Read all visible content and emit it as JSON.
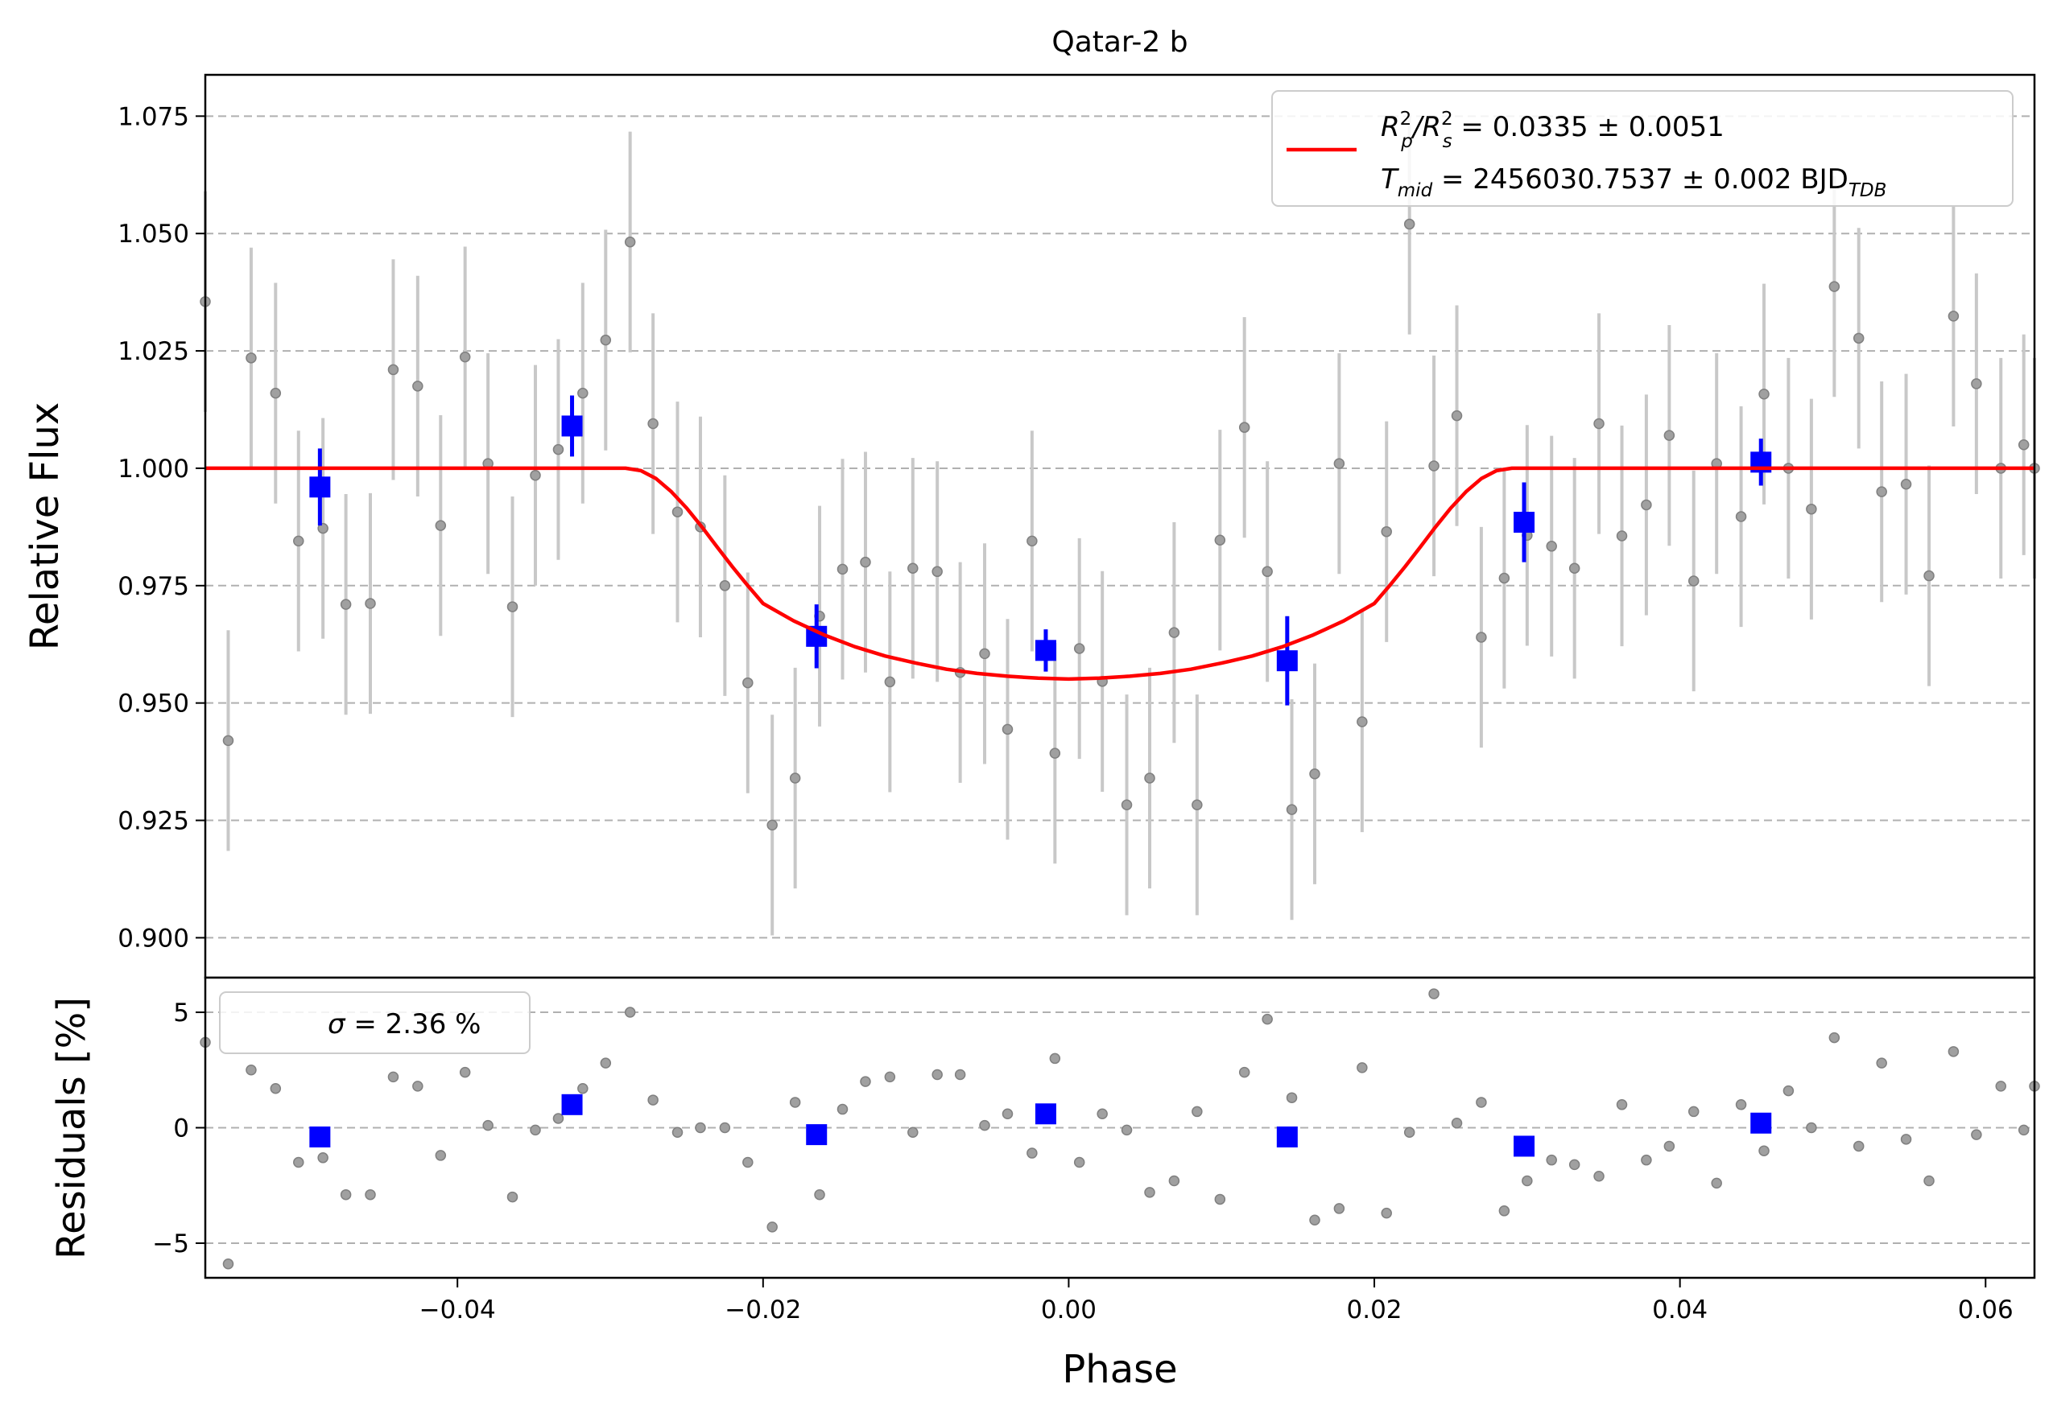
{
  "chart_data": [
    {
      "type": "scatter",
      "title": "Qatar-2 b",
      "xlabel": "",
      "ylabel": "Relative Flux",
      "xlim": [
        -0.0565,
        0.0632
      ],
      "ylim": [
        0.8915,
        1.0838
      ],
      "yticks": [
        0.9,
        0.925,
        0.95,
        0.975,
        1.0,
        1.025,
        1.05,
        1.075
      ],
      "ytick_labels": [
        "0.900",
        "0.925",
        "0.950",
        "0.975",
        "1.000",
        "1.025",
        "1.050",
        "1.075"
      ],
      "grid": "horizontal dashed",
      "legend_position": "top-right",
      "legend": {
        "line1_main": "R",
        "line1_sup1": "2",
        "line1_sub1": "p",
        "line1_slash": "/R",
        "line1_sup2": "2",
        "line1_sub2": "s",
        "line1_rest": " = 0.0335 ± 0.0051",
        "line2_main": "T",
        "line2_sub": "mid",
        "line2_rest": " = 2456030.7537 ± 0.002 BJD",
        "line2_sub2": "TDB"
      },
      "series": [
        {
          "role": "raw",
          "color": "#808080",
          "x": [
            -0.0565,
            -0.055,
            -0.0535,
            -0.0519,
            -0.0504,
            -0.0488,
            -0.0473,
            -0.0457,
            -0.0442,
            -0.0426,
            -0.0411,
            -0.0395,
            -0.038,
            -0.0364,
            -0.0349,
            -0.0334,
            -0.0318,
            -0.0303,
            -0.0287,
            -0.0272,
            -0.0256,
            -0.0241,
            -0.0225,
            -0.021,
            -0.0194,
            -0.0179,
            -0.0163,
            -0.0148,
            -0.0133,
            -0.0117,
            -0.0102,
            -0.0086,
            -0.0071,
            -0.0055,
            -0.004,
            -0.0024,
            -0.0009,
            0.0007,
            0.0022,
            0.0038,
            0.0053,
            0.0069,
            0.0084,
            0.0099,
            0.0115,
            0.013,
            0.0146,
            0.0161,
            0.0177,
            0.0192,
            0.0208,
            0.0223,
            0.0239,
            0.0254,
            0.027,
            0.0285,
            0.03,
            0.0316,
            0.0331,
            0.0347,
            0.0362,
            0.0378,
            0.0393,
            0.0409,
            0.0424,
            0.044,
            0.0455,
            0.0471,
            0.0486,
            0.0501,
            0.0517,
            0.0532,
            0.0548,
            0.0563,
            0.0579,
            0.0594,
            0.061,
            0.0625,
            0.0632
          ],
          "y": [
            1.0355,
            0.942,
            1.0235,
            1.016,
            0.9845,
            0.9872,
            0.971,
            0.9712,
            1.021,
            1.0175,
            0.9878,
            1.0237,
            1.001,
            0.9705,
            0.9985,
            1.004,
            1.016,
            1.0273,
            1.0482,
            1.0095,
            0.9907,
            0.9875,
            0.975,
            0.9543,
            0.924,
            0.934,
            0.9685,
            0.9785,
            0.98,
            0.9545,
            0.9787,
            0.978,
            0.9565,
            0.9605,
            0.9444,
            0.9845,
            0.9393,
            0.9616,
            0.9546,
            0.9283,
            0.934,
            0.965,
            0.9283,
            0.9847,
            1.0087,
            0.978,
            0.9273,
            0.9349,
            1.001,
            0.946,
            0.9865,
            1.052,
            1.0005,
            1.0112,
            0.964,
            0.9766,
            0.9857,
            0.9834,
            0.9787,
            1.0095,
            0.9856,
            0.9922,
            1.007,
            0.976,
            1.001,
            0.9897,
            1.0158,
            1.0,
            0.9913,
            1.0387,
            1.0277,
            0.995,
            0.9966,
            0.9771,
            1.0324,
            1.018,
            1.0,
            1.005,
            1.0
          ],
          "yerr": [
            0.0235,
            0.0235,
            0.0235,
            0.0235,
            0.0235,
            0.0235,
            0.0235,
            0.0235,
            0.0235,
            0.0235,
            0.0235,
            0.0235,
            0.0235,
            0.0235,
            0.0235,
            0.0235,
            0.0235,
            0.0235,
            0.0235,
            0.0235,
            0.0235,
            0.0235,
            0.0235,
            0.0235,
            0.0235,
            0.0235,
            0.0235,
            0.0235,
            0.0235,
            0.0235,
            0.0235,
            0.0235,
            0.0235,
            0.0235,
            0.0235,
            0.0235,
            0.0235,
            0.0235,
            0.0235,
            0.0235,
            0.0235,
            0.0235,
            0.0235,
            0.0235,
            0.0235,
            0.0235,
            0.0235,
            0.0235,
            0.0235,
            0.0235,
            0.0235,
            0.0235,
            0.0235,
            0.0235,
            0.0235,
            0.0235,
            0.0235,
            0.0235,
            0.0235,
            0.0235,
            0.0235,
            0.0235,
            0.0235,
            0.0235,
            0.0235,
            0.0235,
            0.0235,
            0.0235,
            0.0235,
            0.0235,
            0.0235,
            0.0235,
            0.0235,
            0.0235,
            0.0235,
            0.0235,
            0.0235,
            0.0235,
            0.0235
          ]
        },
        {
          "role": "binned",
          "color": "#0000ff",
          "x": [
            -0.049,
            -0.0325,
            -0.0165,
            -0.0015,
            0.0143,
            0.0298,
            0.0453
          ],
          "y": [
            0.996,
            1.009,
            0.9642,
            0.9612,
            0.959,
            0.9885,
            1.0013
          ],
          "yerr": [
            0.0082,
            0.0065,
            0.0068,
            0.0045,
            0.0095,
            0.0085,
            0.005
          ]
        },
        {
          "role": "model",
          "color": "#ff0000",
          "x": [
            -0.0565,
            -0.029,
            -0.028,
            -0.027,
            -0.026,
            -0.025,
            -0.024,
            -0.023,
            -0.022,
            -0.021,
            -0.02,
            -0.018,
            -0.016,
            -0.014,
            -0.012,
            -0.01,
            -0.008,
            -0.006,
            -0.004,
            -0.002,
            0.0,
            0.002,
            0.004,
            0.006,
            0.008,
            0.01,
            0.012,
            0.014,
            0.016,
            0.018,
            0.02,
            0.021,
            0.022,
            0.023,
            0.024,
            0.025,
            0.026,
            0.027,
            0.028,
            0.029,
            0.0632
          ],
          "y": [
            1.0,
            1.0,
            0.9995,
            0.9978,
            0.995,
            0.9915,
            0.9875,
            0.9832,
            0.979,
            0.975,
            0.9712,
            0.9675,
            0.9645,
            0.962,
            0.96,
            0.9585,
            0.9572,
            0.9563,
            0.9557,
            0.9553,
            0.9551,
            0.9553,
            0.9557,
            0.9563,
            0.9572,
            0.9585,
            0.96,
            0.962,
            0.9645,
            0.9675,
            0.9712,
            0.975,
            0.979,
            0.9832,
            0.9875,
            0.9915,
            0.995,
            0.9978,
            0.9995,
            1.0,
            1.0
          ]
        }
      ]
    },
    {
      "type": "scatter",
      "xlabel": "Phase",
      "ylabel": "Residuals [%]",
      "xlim": [
        -0.0565,
        0.0632
      ],
      "ylim": [
        -6.5,
        6.5
      ],
      "xticks": [
        -0.04,
        -0.02,
        0.0,
        0.02,
        0.04,
        0.06
      ],
      "xtick_labels": [
        "−0.04",
        "−0.02",
        "0.00",
        "0.02",
        "0.04",
        "0.06"
      ],
      "yticks": [
        -5,
        0,
        5
      ],
      "ytick_labels": [
        "−5",
        "0",
        "5"
      ],
      "grid": "horizontal dashed",
      "legend_position": "top-left",
      "legend": {
        "sigma_symbol": "σ",
        "sigma_text": " = 2.36 %"
      },
      "series": [
        {
          "role": "raw",
          "color": "#808080",
          "x": [
            -0.0565,
            -0.055,
            -0.0535,
            -0.0519,
            -0.0504,
            -0.0488,
            -0.0473,
            -0.0457,
            -0.0442,
            -0.0426,
            -0.0411,
            -0.0395,
            -0.038,
            -0.0364,
            -0.0349,
            -0.0334,
            -0.0318,
            -0.0303,
            -0.0287,
            -0.0272,
            -0.0256,
            -0.0241,
            -0.0225,
            -0.021,
            -0.0194,
            -0.0179,
            -0.0163,
            -0.0148,
            -0.0133,
            -0.0117,
            -0.0102,
            -0.0086,
            -0.0071,
            -0.0055,
            -0.004,
            -0.0024,
            -0.0009,
            0.0007,
            0.0022,
            0.0038,
            0.0053,
            0.0069,
            0.0084,
            0.0099,
            0.0115,
            0.013,
            0.0146,
            0.0161,
            0.0177,
            0.0192,
            0.0208,
            0.0223,
            0.0239,
            0.0254,
            0.027,
            0.0285,
            0.03,
            0.0316,
            0.0331,
            0.0347,
            0.0362,
            0.0378,
            0.0393,
            0.0409,
            0.0424,
            0.044,
            0.0455,
            0.0471,
            0.0486,
            0.0501,
            0.0517,
            0.0532,
            0.0548,
            0.0563,
            0.0579,
            0.0594,
            0.061,
            0.0625,
            0.0632
          ],
          "y": [
            3.7,
            -5.9,
            2.5,
            1.7,
            -1.5,
            -1.3,
            -2.9,
            -2.9,
            2.2,
            1.8,
            -1.2,
            2.4,
            0.1,
            -3.0,
            -0.1,
            0.4,
            1.7,
            2.8,
            5.0,
            1.2,
            -0.2,
            0.0,
            0.0,
            -1.5,
            -4.3,
            1.1,
            -2.9,
            0.8,
            2.0,
            2.2,
            -0.2,
            2.3,
            2.3,
            0.1,
            0.6,
            -1.1,
            3.0,
            -1.5,
            0.6,
            -0.1,
            -2.8,
            -2.3,
            0.7,
            -3.1,
            2.4,
            4.7,
            1.3,
            -4.0,
            -3.5,
            2.6,
            -3.7,
            -0.2,
            5.8,
            0.2,
            1.1,
            -3.6,
            -2.3,
            -1.4,
            -1.6,
            -2.1,
            1.0,
            -1.4,
            -0.8,
            0.7,
            -2.4,
            1.0,
            -1.0,
            1.6,
            0.0,
            3.9,
            -0.8,
            2.8,
            -0.5,
            -2.3,
            3.3,
            -0.3,
            1.8,
            -0.1,
            1.8
          ]
        },
        {
          "role": "binned",
          "color": "#0000ff",
          "x": [
            -0.049,
            -0.0325,
            -0.0165,
            -0.0015,
            0.0143,
            0.0298,
            0.0453
          ],
          "y": [
            -0.4,
            1.0,
            -0.3,
            0.6,
            -0.4,
            -0.8,
            0.2
          ]
        }
      ]
    }
  ]
}
